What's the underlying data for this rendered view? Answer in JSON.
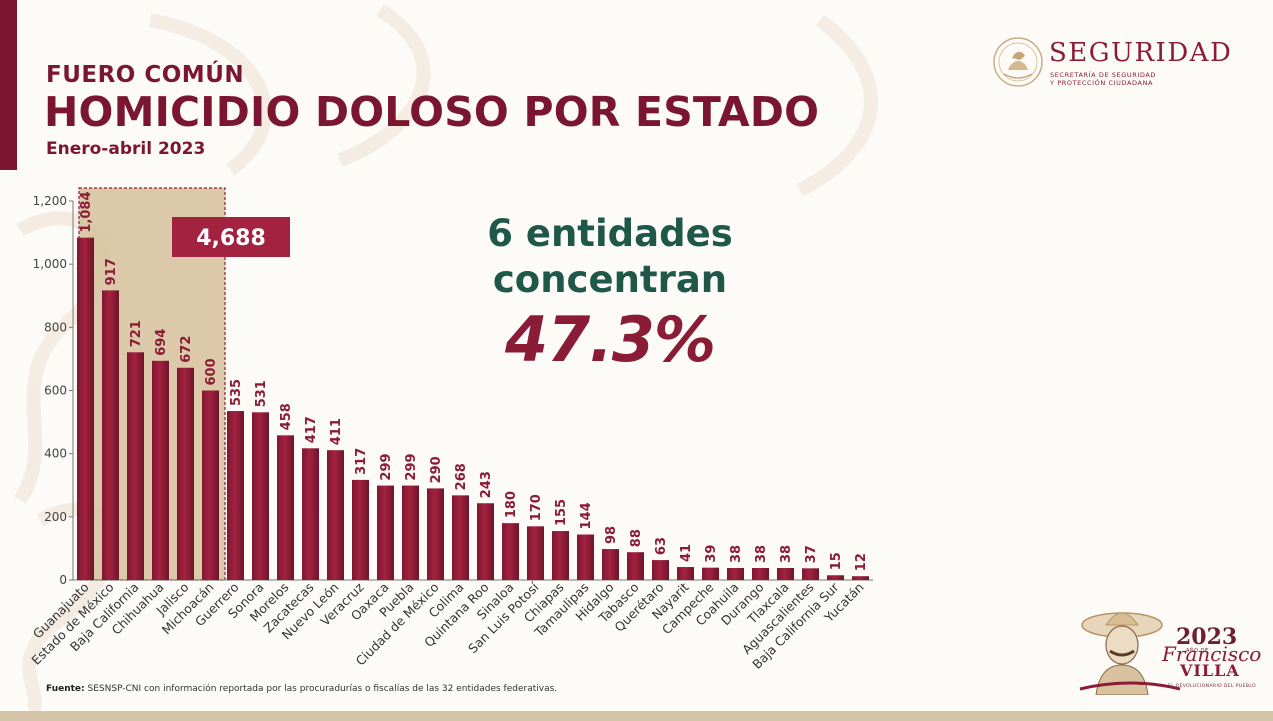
{
  "header": {
    "kicker": "FUERO COMÚN",
    "title": "HOMICIDIO DOLOSO POR ESTADO",
    "subtitle": "Enero-abril 2023"
  },
  "logo": {
    "word": "SEGURIDAD",
    "line1": "SECRETARÍA DE SEGURIDAD",
    "line2": "Y PROTECCIÓN CIUDADANA"
  },
  "highlight": {
    "line1": "6 entidades",
    "line2": "concentran",
    "percent": "47.3%",
    "box_total": "4,688",
    "box_count": 6
  },
  "chart_data": {
    "type": "bar",
    "ylim": [
      0,
      1200
    ],
    "yticks": [
      0,
      200,
      400,
      600,
      800,
      1000,
      1200
    ],
    "ytick_labels": [
      "0",
      "200",
      "400",
      "600",
      "800",
      "1,000",
      "1,200"
    ],
    "grid": false,
    "categories": [
      "Guanajuato",
      "Estado de México",
      "Baja California",
      "Chihuahua",
      "Jalisco",
      "Michoacán",
      "Guerrero",
      "Sonora",
      "Morelos",
      "Zacatecas",
      "Nuevo León",
      "Veracruz",
      "Oaxaca",
      "Puebla",
      "Ciudad de México",
      "Colima",
      "Quintana Roo",
      "Sinaloa",
      "San Luis Potosí",
      "Chiapas",
      "Tamaulipas",
      "Hidalgo",
      "Tabasco",
      "Querétaro",
      "Nayarit",
      "Campeche",
      "Coahuila",
      "Durango",
      "Tlaxcala",
      "Aguascalientes",
      "Baja California Sur",
      "Yucatán"
    ],
    "values": [
      1084,
      917,
      721,
      694,
      672,
      600,
      535,
      531,
      458,
      417,
      411,
      317,
      299,
      299,
      290,
      268,
      243,
      180,
      170,
      155,
      144,
      98,
      88,
      63,
      41,
      39,
      38,
      38,
      38,
      37,
      15,
      12
    ],
    "value_labels": [
      "1,084",
      "917",
      "721",
      "694",
      "672",
      "600",
      "535",
      "531",
      "458",
      "417",
      "411",
      "317",
      "299",
      "299",
      "290",
      "268",
      "243",
      "180",
      "170",
      "155",
      "144",
      "98",
      "88",
      "63",
      "41",
      "39",
      "38",
      "38",
      "38",
      "37",
      "15",
      "12"
    ],
    "bar_color": "#a3223f",
    "highlight_color": "#d7c3a0"
  },
  "footer": {
    "source_label": "Fuente:",
    "source_text": " SESNSP-CNI con información reportada por las procuradurías o fiscalías de las 32 entidades federativas."
  },
  "villa_logo": {
    "year": "2023",
    "ano": "AÑO DE",
    "name1": "Francisco",
    "name2": "VILLA",
    "tag": "EL REVOLUCIONARIO DEL PUEBLO"
  },
  "colors": {
    "maroon": "#7a1631",
    "green": "#1f5748",
    "gold": "#bfa37a"
  }
}
